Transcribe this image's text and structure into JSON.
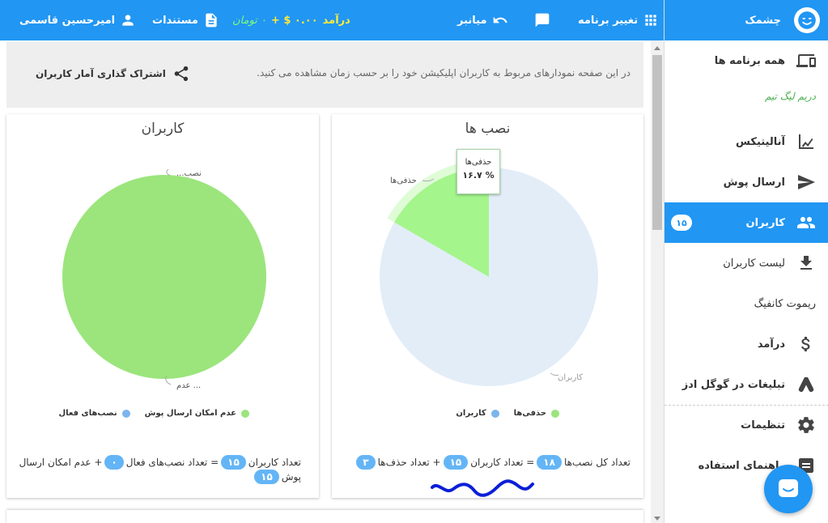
{
  "topbar": {
    "user_name": "امیرحسین قاسمی",
    "docs_label": "مستندات",
    "income_label": "درآمد",
    "income_value": "۰.۰۰ $ +",
    "income_toman": "۰ تومان",
    "shortcuts_label": "میانبر",
    "change_app_label": "تغییر برنامه"
  },
  "sidebar": {
    "brand": "چشمک",
    "all_apps": "همه برنامه ها",
    "team": "دریم لیگ تیم",
    "analytics": "آنالیتیکس",
    "send_push": "ارسال پوش",
    "users": "کاربران",
    "users_badge": "۱۵",
    "users_list": "لیست کاربران",
    "remote_config": "ریموت کانفیگ",
    "income": "درآمد",
    "google_ads": "تبلیغات در گوگل ادز",
    "settings": "تنظیمات",
    "guide": "راهنمای استفاده"
  },
  "info": {
    "description": "در این صفحه نمودارهای مربوط به کاربران اپلیکیشن خود را بر حسب زمان مشاهده می کنید.",
    "share_label": "اشتراک گذاری آمار کاربران"
  },
  "chart_data": [
    {
      "type": "pie",
      "title": "کاربران",
      "slices": [
        {
          "label": "عدم امکان ارسال پوش",
          "value": 15,
          "color": "#9be57c"
        },
        {
          "label": "نصب‌های فعال",
          "value": 0,
          "color": "#7cb5ec"
        }
      ],
      "slice_labels": [
        "...نصب",
        "عدم ..."
      ],
      "legend": [
        "عدم امکان ارسال پوش",
        "نصب‌های فعال"
      ],
      "legend_colors": [
        "#9be57c",
        "#7cb5ec"
      ]
    },
    {
      "type": "pie",
      "title": "نصب ها",
      "slices": [
        {
          "label": "حذفی‌ها",
          "value": 3,
          "percent": 16.7,
          "color": "#a4f58c"
        },
        {
          "label": "کاربران",
          "value": 15,
          "color": "#e3edf8"
        }
      ],
      "slice_labels": [
        "حذفی‌ها",
        "کاربران"
      ],
      "legend": [
        "حذفی‌ها",
        "کاربران"
      ],
      "legend_colors": [
        "#9be57c",
        "#7cb5ec"
      ],
      "tooltip": {
        "label": "حذفی‌ها",
        "value": "% ۱۶.۷"
      }
    }
  ],
  "users_formula": {
    "part1": "تعداد کاربران",
    "users": "۱۵",
    "part2": "= تعداد نصب‌های فعال",
    "active": "۰",
    "part3": "+ عدم امکان ارسال پوش",
    "no_push": "۱۵"
  },
  "installs_formula": {
    "part1": "تعداد کل نصب‌ها",
    "total": "۱۸",
    "part2": "= تعداد کاربران",
    "users": "۱۵",
    "part3": "+ تعداد حذف‌ها",
    "removed": "۳"
  },
  "colors": {
    "primary": "#2196f3",
    "income": "#ffeb3b",
    "pie_green": "#9be57c",
    "pie_blue_light": "#e3edf8",
    "pill": "#64b5f6"
  }
}
